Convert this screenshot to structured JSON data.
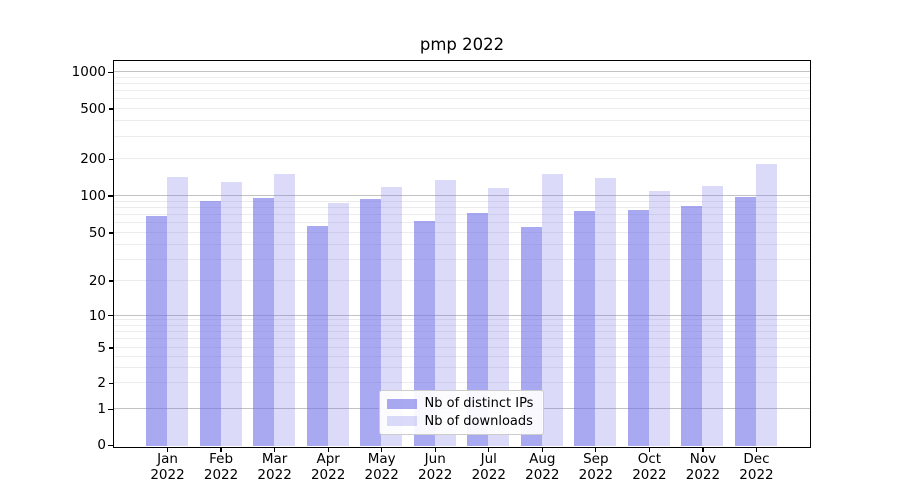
{
  "figure": {
    "title": "pmp 2022",
    "background": "#ffffff"
  },
  "legend": {
    "items": [
      {
        "label": "Nb of distinct IPs",
        "series": "ips"
      },
      {
        "label": "Nb of downloads",
        "series": "downloads"
      }
    ]
  },
  "colors": {
    "ips_bar": "rgba(112,112,232,0.60)",
    "downloads_bar": "rgba(112,112,232,0.25)",
    "grid_major": "#c2c2c2",
    "grid_minor": "#ececec",
    "axis_line": "#000000",
    "tick_label": "#000000",
    "legend_bg": "rgba(255,255,255,0.92)",
    "legend_border": "#cccccc"
  },
  "chart_data": {
    "type": "bar",
    "title": "pmp 2022",
    "categories": [
      "Jan 2022",
      "Feb 2022",
      "Mar 2022",
      "Apr 2022",
      "May 2022",
      "Jun 2022",
      "Jul 2022",
      "Aug 2022",
      "Sep 2022",
      "Oct 2022",
      "Nov 2022",
      "Dec 2022"
    ],
    "series": [
      {
        "name": "Nb of distinct IPs",
        "values": [
          68,
          90,
          96,
          57,
          94,
          62,
          72,
          55,
          75,
          76,
          82,
          97
        ]
      },
      {
        "name": "Nb of downloads",
        "values": [
          142,
          130,
          151,
          87,
          118,
          133,
          115,
          150,
          139,
          109,
          120,
          182
        ]
      }
    ],
    "xlabel": "",
    "ylabel": "",
    "y_scale": "symlog",
    "ylim": [
      0,
      1230
    ],
    "y_ticks": [
      0,
      1,
      2,
      5,
      10,
      20,
      50,
      100,
      200,
      500,
      1000
    ],
    "y_major_gridlines": [
      1,
      10,
      100,
      1000
    ],
    "y_minor_gridlines": [
      2,
      3,
      4,
      5,
      6,
      7,
      8,
      9,
      20,
      30,
      40,
      50,
      60,
      70,
      80,
      90,
      200,
      300,
      400,
      500,
      600,
      700,
      800,
      900
    ],
    "grid": "both",
    "legend_position": "inside-bottom-center",
    "y_tick_fractions": [
      [
        0,
        0.9961
      ],
      [
        1,
        0.9027
      ],
      [
        2,
        0.8348
      ],
      [
        5,
        0.7432
      ],
      [
        10,
        0.6589
      ],
      [
        20,
        0.5694
      ],
      [
        50,
        0.4449
      ],
      [
        100,
        0.3489
      ],
      [
        200,
        0.2542
      ],
      [
        500,
        0.1232
      ],
      [
        1000,
        0.0285
      ]
    ]
  }
}
